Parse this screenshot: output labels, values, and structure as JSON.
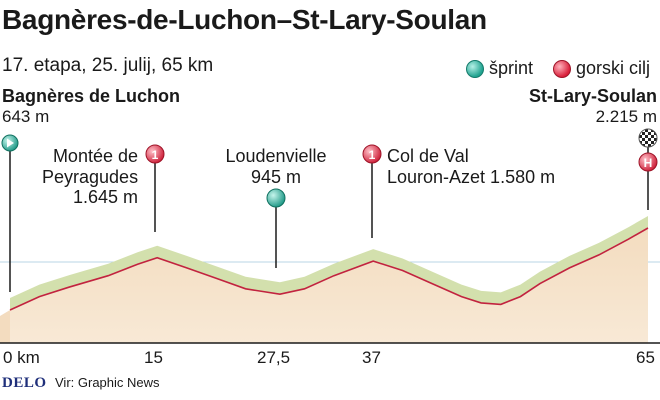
{
  "title": "Bagnères-de-Luchon–St-Lary-Soulan",
  "subtitle": "17. etapa, 25. julij, 65 km",
  "legend": [
    {
      "label": "šprint",
      "color": "#1fa28f",
      "icon": "sprint-point-icon"
    },
    {
      "label": "gorski cilj",
      "color": "#d91f3a",
      "icon": "climb-point-icon"
    }
  ],
  "start": {
    "name": "Bagnères de Luchon",
    "altitude": "643 m"
  },
  "finish": {
    "name": "St-Lary-Soulan",
    "altitude": "2.215 m"
  },
  "waypoints": {
    "peyragudes": {
      "line1": "Montée de",
      "line2": "Peyragudes",
      "line3": "1.645 m",
      "marker": "1"
    },
    "loudenvielle": {
      "line1": "Loudenvielle",
      "line2": "945 m"
    },
    "val_louron": {
      "line1": "Col de Val",
      "line2": "Louron-Azet 1.580 m",
      "marker": "1"
    },
    "finish_marker": "H"
  },
  "x_ticks": [
    "0 km",
    "15",
    "27,5",
    "37",
    "65"
  ],
  "footer": {
    "brand": "DELO",
    "source": "Vir: Graphic News"
  },
  "colors": {
    "ground": "#f2dcc0",
    "ridge_top": "#cfdcaa",
    "ridge_side": "#9aab72",
    "route": "#c2233f",
    "sprint": "#1fa28f",
    "climb": "#d91f3a"
  },
  "chart_data": {
    "type": "area",
    "xlabel": "",
    "ylabel": "",
    "x_range": [
      0,
      65
    ],
    "x_ticks": [
      0,
      15,
      27.5,
      37,
      65
    ],
    "points": [
      {
        "km": 0,
        "alt": 643
      },
      {
        "km": 3,
        "alt": 900
      },
      {
        "km": 6,
        "alt": 1080
      },
      {
        "km": 10,
        "alt": 1300
      },
      {
        "km": 13,
        "alt": 1520
      },
      {
        "km": 15,
        "alt": 1645
      },
      {
        "km": 18,
        "alt": 1450
      },
      {
        "km": 21,
        "alt": 1250
      },
      {
        "km": 24,
        "alt": 1050
      },
      {
        "km": 27.5,
        "alt": 945
      },
      {
        "km": 30,
        "alt": 1050
      },
      {
        "km": 33,
        "alt": 1300
      },
      {
        "km": 37,
        "alt": 1580
      },
      {
        "km": 40,
        "alt": 1400
      },
      {
        "km": 43,
        "alt": 1150
      },
      {
        "km": 46,
        "alt": 900
      },
      {
        "km": 48,
        "alt": 780
      },
      {
        "km": 50,
        "alt": 750
      },
      {
        "km": 52,
        "alt": 900
      },
      {
        "km": 54,
        "alt": 1150
      },
      {
        "km": 57,
        "alt": 1450
      },
      {
        "km": 60,
        "alt": 1700
      },
      {
        "km": 63,
        "alt": 2000
      },
      {
        "km": 65,
        "alt": 2215
      }
    ]
  }
}
